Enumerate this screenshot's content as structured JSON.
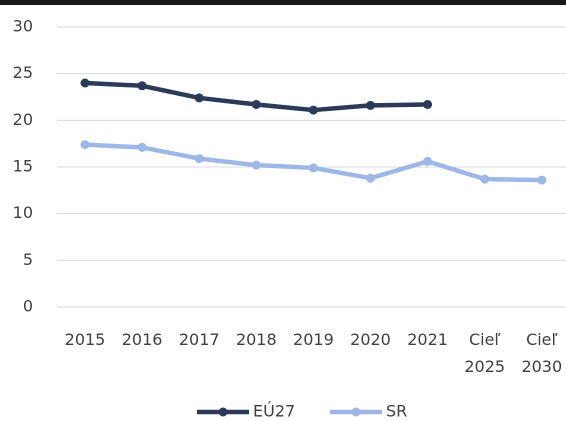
{
  "chart_data": {
    "type": "line",
    "categories": [
      "2015",
      "2016",
      "2017",
      "2018",
      "2019",
      "2020",
      "2021",
      "Cieľ 2025",
      "Cieľ 2030"
    ],
    "series": [
      {
        "name": "EÚ27",
        "color": "#2a3a58",
        "values": [
          24.0,
          23.7,
          22.4,
          21.7,
          21.1,
          21.6,
          21.7,
          null,
          null
        ]
      },
      {
        "name": "SR",
        "color": "#9db8e6",
        "values": [
          17.4,
          17.1,
          15.9,
          15.2,
          14.9,
          13.8,
          15.6,
          13.7,
          13.6
        ]
      }
    ],
    "ylim": [
      0,
      30
    ],
    "yticks": [
      0,
      5,
      10,
      15,
      20,
      25,
      30
    ],
    "grid": true,
    "legend": "bottom"
  }
}
